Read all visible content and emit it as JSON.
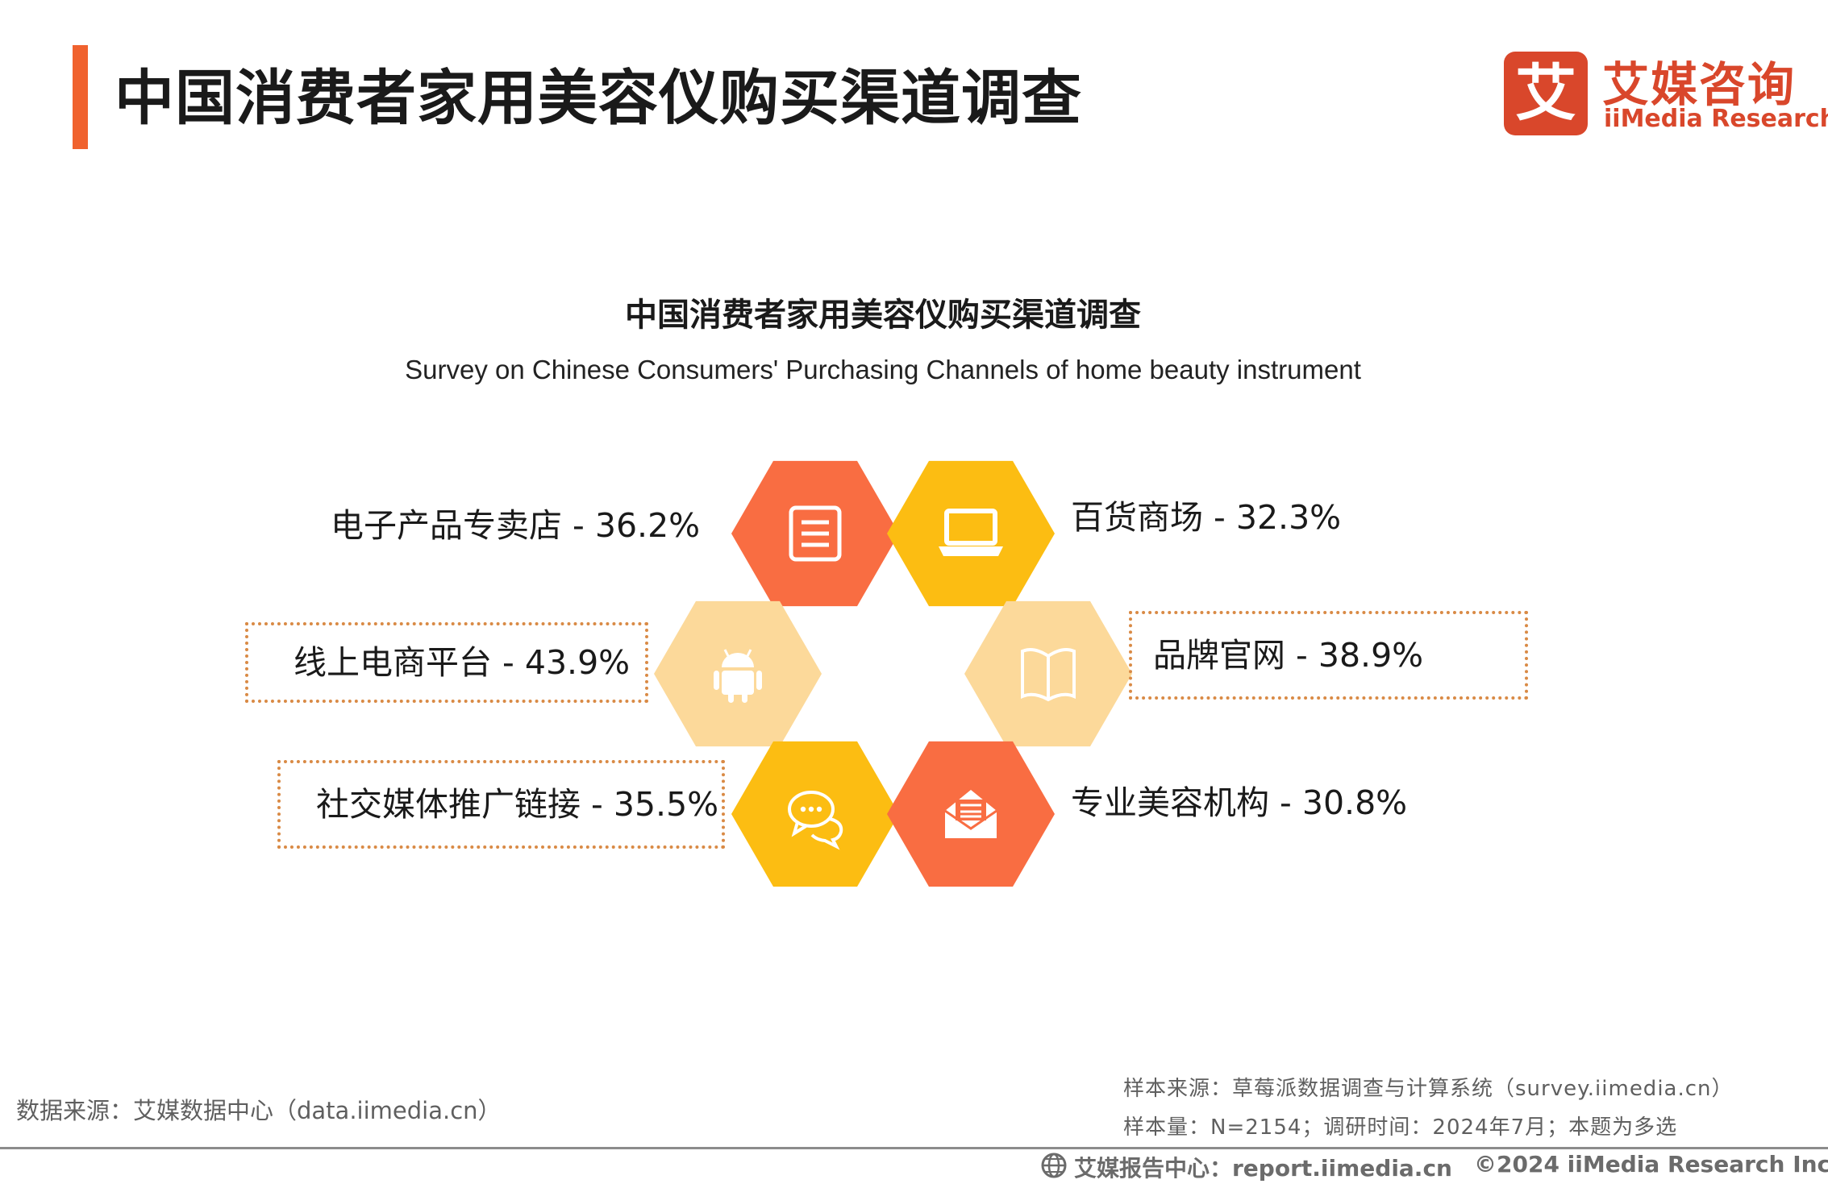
{
  "header": {
    "title": "中国消费者家用美容仪购买渠道调查",
    "accent_color": "#f0622e"
  },
  "logo": {
    "mark": "艾",
    "name_cn": "艾媒咨询",
    "name_en": "iiMedia Research",
    "color": "#d9472b"
  },
  "chart_data": {
    "type": "hexagon-infographic",
    "title": "中国消费者家用美容仪购买渠道调查",
    "subtitle": "Survey on Chinese Consumers' Purchasing Channels of home beauty instrument",
    "unit": "%",
    "items": [
      {
        "label": "电子产品专卖店",
        "value": 36.2,
        "text": "电子产品专卖店 - 36.2%",
        "color": "#f96d42",
        "icon": "document-icon",
        "highlighted": false
      },
      {
        "label": "百货商场",
        "value": 32.3,
        "text": "百货商场 - 32.3%",
        "color": "#fcbd12",
        "icon": "laptop-icon",
        "highlighted": false
      },
      {
        "label": "线上电商平台",
        "value": 43.9,
        "text": "线上电商平台 - 43.9%",
        "color": "#fcd99a",
        "icon": "android-icon",
        "highlighted": true
      },
      {
        "label": "品牌官网",
        "value": 38.9,
        "text": "品牌官网 - 38.9%",
        "color": "#fcd99a",
        "icon": "book-icon",
        "highlighted": true
      },
      {
        "label": "社交媒体推广链接",
        "value": 35.5,
        "text": "社交媒体推广链接 - 35.5%",
        "color": "#fcbd12",
        "icon": "chat-icon",
        "highlighted": true
      },
      {
        "label": "专业美容机构",
        "value": 30.8,
        "text": "专业美容机构 - 30.8%",
        "color": "#f96d42",
        "icon": "envelope-icon",
        "highlighted": false
      }
    ]
  },
  "footer": {
    "source_left": "数据来源：艾媒数据中心（data.iimedia.cn）",
    "sample_source": "样本来源：草莓派数据调查与计算系统（survey.iimedia.cn）",
    "sample_info": "样本量：N=2154；调研时间：2024年7月；本题为多选",
    "report_center": "艾媒报告中心：report.iimedia.cn",
    "copyright": "©2024  iiMedia Research  Inc"
  }
}
